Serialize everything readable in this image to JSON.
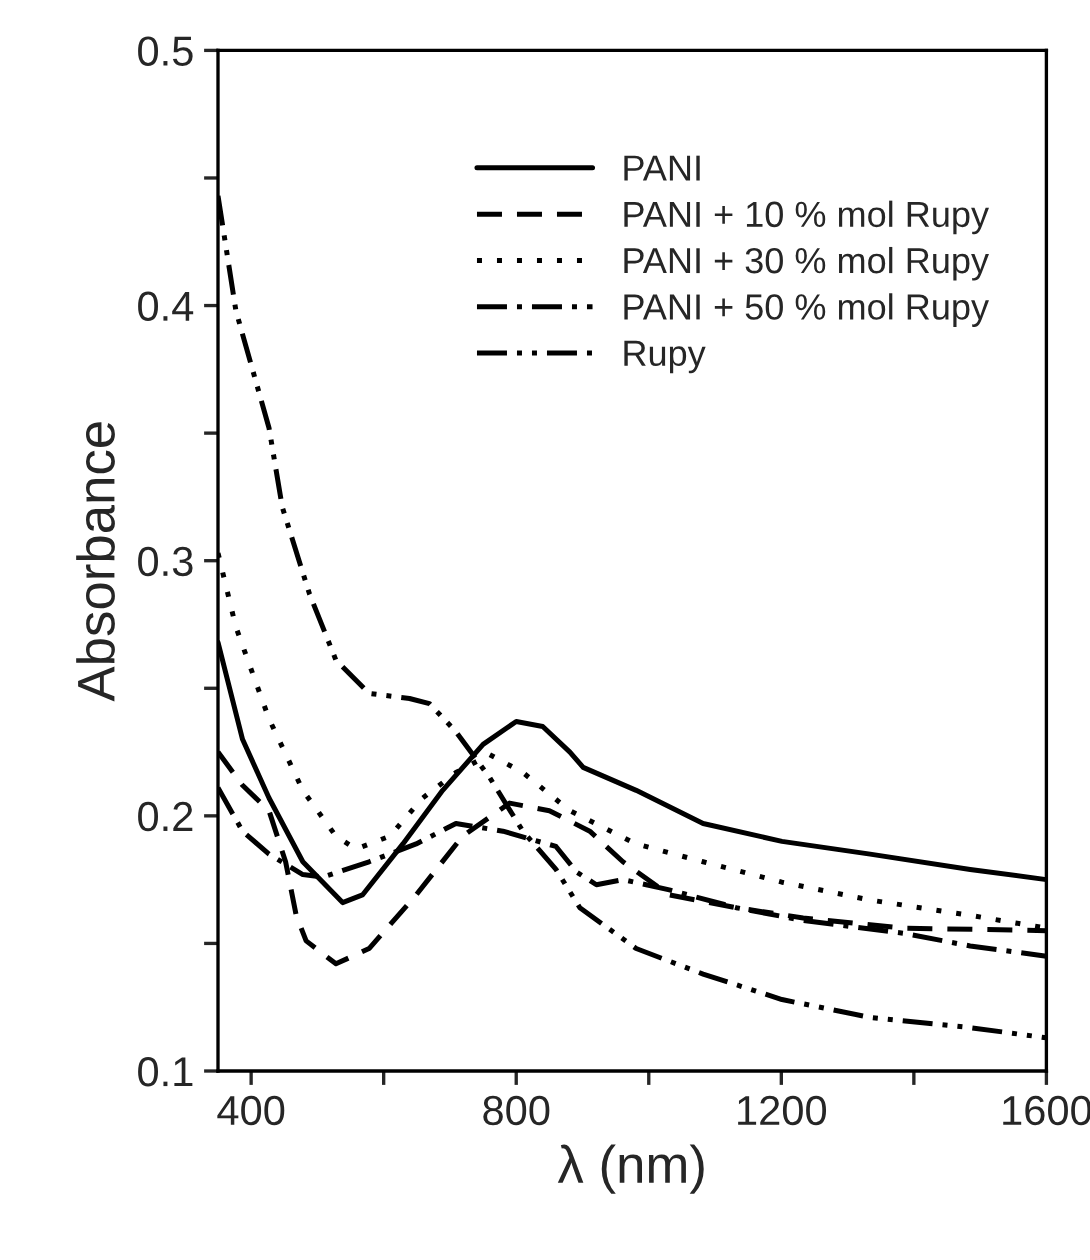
{
  "chart_data": {
    "type": "line",
    "xlabel": "λ (nm)",
    "ylabel": "Absorbance",
    "xlim": [
      350,
      1600
    ],
    "ylim": [
      0.1,
      0.5
    ],
    "xticks": [
      400,
      {
        "value": 600,
        "label": null
      },
      800,
      {
        "value": 1000,
        "label": null
      },
      1200,
      {
        "value": 1400,
        "label": null
      },
      1600
    ],
    "yticks": [
      0.1,
      {
        "value": 0.15,
        "label": null
      },
      0.2,
      {
        "value": 0.25,
        "label": null
      },
      0.3,
      {
        "value": 0.35,
        "label": null
      },
      0.4,
      {
        "value": 0.45,
        "label": null
      },
      0.5
    ],
    "legend": "top right",
    "grid": false,
    "series": [
      {
        "name": "PANI",
        "color": "#000000",
        "line_style": "solid",
        "x": [
          350,
          387,
          427,
          478,
          538,
          568,
          629,
          689,
          750,
          800,
          840,
          881,
          901,
          981,
          1082,
          1201,
          1334,
          1485,
          1600
        ],
        "values": [
          0.268,
          0.23,
          0.207,
          0.182,
          0.166,
          0.169,
          0.189,
          0.21,
          0.228,
          0.237,
          0.235,
          0.225,
          0.219,
          0.21,
          0.197,
          0.19,
          0.185,
          0.179,
          0.175
        ]
      },
      {
        "name": "PANI + 10 % mol Rupy",
        "color": "#000000",
        "line_style": "dashed",
        "x": [
          350,
          387,
          427,
          452,
          468,
          483,
          528,
          578,
          649,
          719,
          790,
          850,
          911,
          961,
          1031,
          1132,
          1233,
          1384,
          1600
        ],
        "values": [
          0.225,
          0.212,
          0.202,
          0.182,
          0.161,
          0.151,
          0.142,
          0.148,
          0.169,
          0.192,
          0.205,
          0.202,
          0.194,
          0.182,
          0.169,
          0.164,
          0.16,
          0.156,
          0.155
        ]
      },
      {
        "name": "PANI + 30 % mol Rupy",
        "color": "#000000",
        "line_style": "dotted",
        "x": [
          350,
          377,
          427,
          478,
          528,
          558,
          609,
          659,
          709,
          760,
          810,
          881,
          981,
          1082,
          1201,
          1334,
          1485,
          1600
        ],
        "values": [
          0.303,
          0.274,
          0.238,
          0.21,
          0.192,
          0.187,
          0.192,
          0.207,
          0.217,
          0.224,
          0.217,
          0.202,
          0.189,
          0.182,
          0.174,
          0.167,
          0.161,
          0.156
        ]
      },
      {
        "name": "PANI + 50 % mol Rupy",
        "color": "#000000",
        "line_style": "dashdot",
        "x": [
          350,
          387,
          427,
          478,
          508,
          578,
          649,
          709,
          780,
          860,
          891,
          921,
          961,
          1031,
          1132,
          1233,
          1384,
          1485,
          1600
        ],
        "values": [
          0.211,
          0.194,
          0.185,
          0.177,
          0.176,
          0.182,
          0.189,
          0.197,
          0.194,
          0.188,
          0.178,
          0.173,
          0.175,
          0.171,
          0.164,
          0.159,
          0.154,
          0.149,
          0.145
        ]
      },
      {
        "name": "Rupy",
        "color": "#000000",
        "line_style": "dashdotdot",
        "x": [
          350,
          377,
          427,
          447,
          488,
          528,
          578,
          639,
          669,
          709,
          760,
          810,
          860,
          896,
          981,
          1082,
          1201,
          1334,
          1485,
          1600
        ],
        "values": [
          0.443,
          0.398,
          0.352,
          0.321,
          0.287,
          0.261,
          0.248,
          0.246,
          0.244,
          0.233,
          0.215,
          0.194,
          0.179,
          0.164,
          0.148,
          0.138,
          0.128,
          0.121,
          0.117,
          0.113
        ]
      }
    ]
  }
}
